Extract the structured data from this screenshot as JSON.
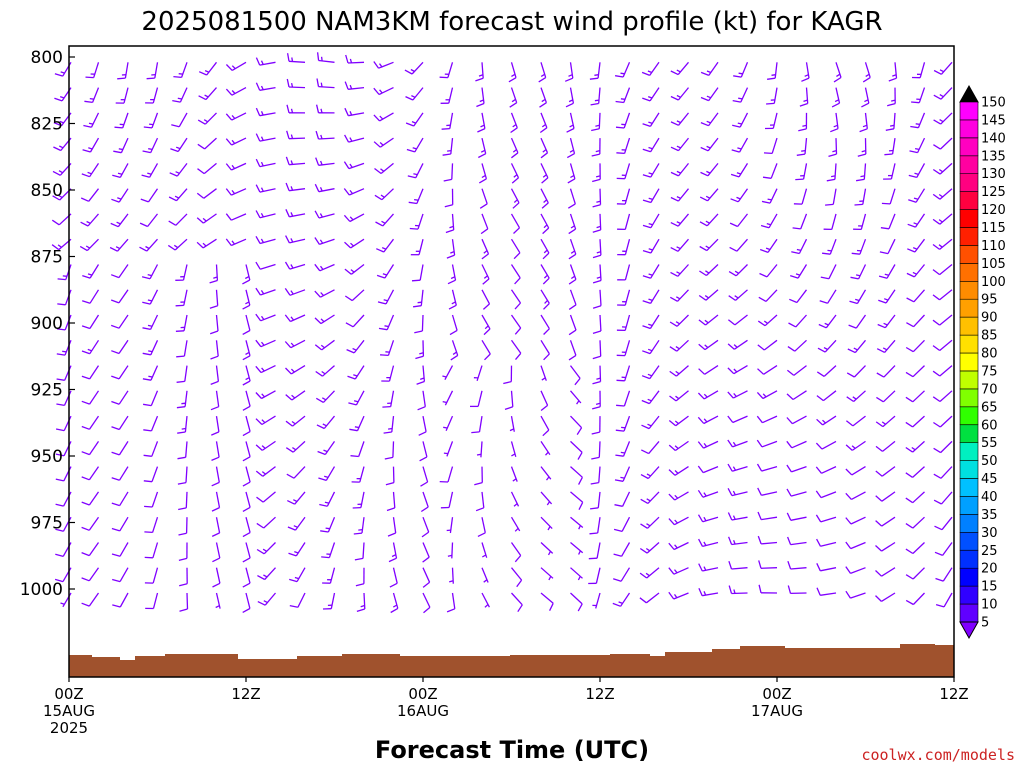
{
  "chart_data": {
    "type": "wind_barbs_time_height",
    "title": "2025081500 NAM3KM forecast wind profile (kt) for KAGR",
    "xlabel": "Forecast Time (UTC)",
    "credit": "coolwx.com/models",
    "y_axis": {
      "ticks": [
        "800",
        "825",
        "850",
        "875",
        "900",
        "925",
        "950",
        "975",
        "1000"
      ],
      "range": [
        800,
        1013
      ],
      "orientation": "pressure_increasing_downward"
    },
    "x_axis": {
      "range_hours": [
        0,
        60
      ],
      "ticks": [
        {
          "hour": 0,
          "lines": [
            "00Z",
            "15AUG",
            "2025"
          ]
        },
        {
          "hour": 12,
          "lines": [
            "12Z"
          ]
        },
        {
          "hour": 24,
          "lines": [
            "00Z",
            "16AUG"
          ]
        },
        {
          "hour": 36,
          "lines": [
            "12Z"
          ]
        },
        {
          "hour": 48,
          "lines": [
            "00Z",
            "17AUG"
          ]
        },
        {
          "hour": 60,
          "lines": [
            "12Z"
          ]
        }
      ]
    },
    "barb_color": "#8000ff",
    "terrain_color": "#a0522d",
    "colorbar": {
      "values": [
        5,
        10,
        15,
        20,
        25,
        30,
        35,
        40,
        45,
        50,
        55,
        60,
        65,
        70,
        75,
        80,
        85,
        90,
        95,
        100,
        105,
        110,
        115,
        120,
        125,
        130,
        135,
        140,
        145,
        150
      ],
      "colors": [
        "#8000ff",
        "#6000ff",
        "#3000ff",
        "#0000ff",
        "#0030ff",
        "#0050ff",
        "#0080ff",
        "#00a0ff",
        "#00c0ff",
        "#00e0e0",
        "#00f0c0",
        "#00e040",
        "#30ff00",
        "#80ff00",
        "#c0ff00",
        "#ffff00",
        "#ffe000",
        "#ffc000",
        "#ffa000",
        "#ff8c00",
        "#ff7000",
        "#ff5000",
        "#ff2000",
        "#ff0000",
        "#ff0040",
        "#ff0080",
        "#ff00a0",
        "#ff00c0",
        "#ff00e0",
        "#ff00ff"
      ],
      "top_arrow_color": "#000000",
      "bottom_arrow_color": "#8000ff"
    }
  }
}
